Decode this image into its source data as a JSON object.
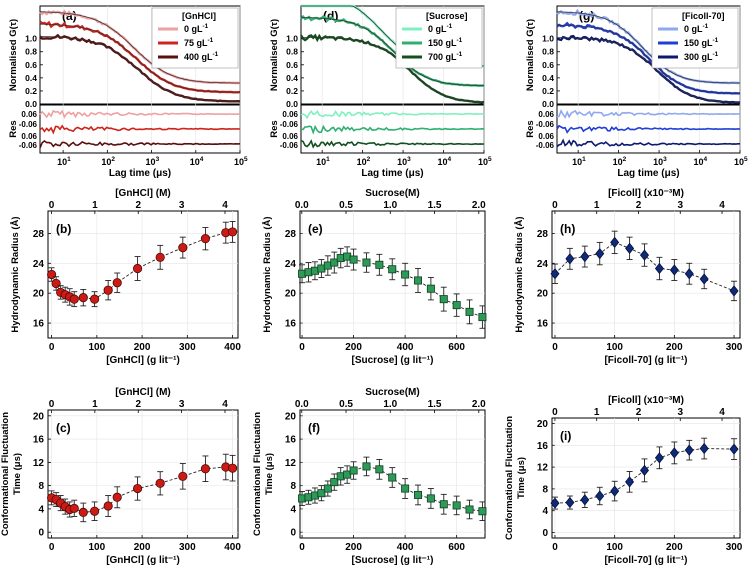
{
  "colors": {
    "gnhcl": [
      "#f0a0a0",
      "#d0231b",
      "#5a0f0f"
    ],
    "sucrose": [
      "#7ff0c0",
      "#2fb070",
      "#14501e"
    ],
    "ficoll": [
      "#8fa8f0",
      "#1f3fd8",
      "#0d1870"
    ],
    "radius_marker_red": "#cc1a14",
    "radius_marker_green": "#2e9a58",
    "radius_marker_blue": "#102a7a",
    "fit_line": "#333333",
    "error_bar": "#222222"
  },
  "chart_data": [
    {
      "id": "a",
      "type": "line",
      "panel_label": "(a)",
      "title": "",
      "ylabel": "Normalised G(τ)",
      "res_label": "Res",
      "xlabel": "Lag time (μs)",
      "xscale": "log",
      "xlim": [
        3,
        100000
      ],
      "x_ticks": [
        "10",
        "10",
        "10",
        "10",
        "10"
      ],
      "x_tick_exp": [
        "1",
        "2",
        "3",
        "4",
        "5"
      ],
      "ylim": [
        0,
        1.5
      ],
      "y_ticks": [
        "1.0",
        "0.8",
        "0.6",
        "0.4",
        "0.2",
        "0.0"
      ],
      "res_ticks": [
        "0.06",
        "-0.06",
        "0.06",
        "-0.06"
      ],
      "legend_title": "[GnHCl]",
      "series": [
        {
          "name": "0 gL",
          "sup": "-1",
          "amp": 1.1,
          "offset": 0.32,
          "tauD": 400
        },
        {
          "name": "75 gL",
          "sup": "-1",
          "amp": 1.05,
          "offset": 0.18,
          "tauD": 450
        },
        {
          "name": "400 gL",
          "sup": "-1",
          "amp": 1.0,
          "offset": 0.04,
          "tauD": 500
        }
      ]
    },
    {
      "id": "d",
      "type": "line",
      "panel_label": "(d)",
      "title": "",
      "ylabel": "Normalised G(τ)",
      "res_label": "Res",
      "xlabel": "Lag time (μs)",
      "xscale": "log",
      "xlim": [
        3,
        100000
      ],
      "x_ticks": [
        "10",
        "10",
        "10",
        "10",
        "10"
      ],
      "x_tick_exp": [
        "1",
        "2",
        "3",
        "4",
        "5"
      ],
      "ylim": [
        0,
        1.5
      ],
      "y_ticks": [
        "1.0",
        "0.8",
        "0.6",
        "0.4",
        "0.2",
        "0.0"
      ],
      "res_ticks": [
        "0.06",
        "-0.06",
        "0.06",
        "-0.06"
      ],
      "legend_title": "[Sucrose]",
      "series": [
        {
          "name": "0 gL",
          "sup": "-1",
          "amp": 1.1,
          "offset": 0.58,
          "tauD": 300
        },
        {
          "name": "150 gL",
          "sup": "-1",
          "amp": 1.05,
          "offset": 0.28,
          "tauD": 600
        },
        {
          "name": "700 gL",
          "sup": "-1",
          "amp": 1.0,
          "offset": 0.02,
          "tauD": 1500
        }
      ]
    },
    {
      "id": "g",
      "type": "line",
      "panel_label": "(g)",
      "title": "",
      "ylabel": "Normalised G(τ)",
      "res_label": "Res",
      "xlabel": "Lag time (μs)",
      "xscale": "log",
      "xlim": [
        3,
        100000
      ],
      "x_ticks": [
        "10",
        "10",
        "10",
        "10",
        "10"
      ],
      "x_tick_exp": [
        "1",
        "2",
        "3",
        "4",
        "5"
      ],
      "ylim": [
        0,
        1.5
      ],
      "y_ticks": [
        "1.0",
        "0.8",
        "0.6",
        "0.4",
        "0.2",
        "0.0"
      ],
      "res_ticks": [
        "0.06",
        "-0.06",
        "0.06",
        "-0.06"
      ],
      "legend_title": "[Ficoll-70]",
      "series": [
        {
          "name": "0 gL",
          "sup": "-1",
          "amp": 1.1,
          "offset": 0.32,
          "tauD": 400
        },
        {
          "name": "150 gL",
          "sup": "-1",
          "amp": 1.05,
          "offset": 0.16,
          "tauD": 600
        },
        {
          "name": "300 gL",
          "sup": "-1",
          "amp": 1.0,
          "offset": 0.02,
          "tauD": 900
        }
      ]
    },
    {
      "id": "b",
      "type": "scatter",
      "panel_label": "(b)",
      "title": "",
      "ylabel": "Hydrodynamic Radius (Å)",
      "xlabel": "[GnHCl]  (g lit⁻¹)",
      "top_label": "[GnHCl]  (M)",
      "top_ticks": [
        "0",
        "1",
        "2",
        "3",
        "4"
      ],
      "x_ticks": [
        "0",
        "100",
        "200",
        "300",
        "400"
      ],
      "y_ticks": [
        "28",
        "24",
        "20",
        "16"
      ],
      "xlim": [
        -8,
        412
      ],
      "ylim": [
        14,
        31
      ],
      "top_xlim": [
        -0.08,
        4.3
      ],
      "x": [
        0,
        10,
        20,
        30,
        40,
        50,
        70,
        95,
        125,
        145,
        190,
        240,
        290,
        340,
        385,
        400
      ],
      "y": [
        22.5,
        21.3,
        20.1,
        19.8,
        19.5,
        19.2,
        19.4,
        19.2,
        20.4,
        21.4,
        23.3,
        24.8,
        26.1,
        27.3,
        28.1,
        28.2
      ],
      "err": [
        0.9,
        0.9,
        0.9,
        1.0,
        1.1,
        1.0,
        1.1,
        1.0,
        1.3,
        1.3,
        1.6,
        1.6,
        1.4,
        1.5,
        1.4,
        1.4
      ],
      "marker": "circle"
    },
    {
      "id": "e",
      "type": "scatter",
      "panel_label": "(e)",
      "title": "",
      "ylabel": "Hydrodynamic Radius (Å)",
      "xlabel": "[Sucrose]  (g lit⁻¹)",
      "top_label": "Sucrose(M)",
      "top_ticks": [
        "0.0",
        "0.5",
        "1.0",
        "1.5",
        "2.0"
      ],
      "x_ticks": [
        "0",
        "200",
        "400",
        "600"
      ],
      "y_ticks": [
        "28",
        "24",
        "20",
        "16"
      ],
      "xlim": [
        -8,
        710
      ],
      "ylim": [
        14,
        31
      ],
      "top_xlim": [
        -0.02,
        2.07
      ],
      "x": [
        0,
        25,
        50,
        75,
        100,
        125,
        150,
        175,
        200,
        250,
        300,
        350,
        400,
        450,
        500,
        550,
        600,
        650,
        700
      ],
      "y": [
        22.6,
        22.8,
        23.0,
        23.3,
        23.7,
        24.1,
        24.7,
        24.9,
        24.5,
        24.1,
        23.8,
        23.2,
        22.5,
        21.7,
        20.6,
        19.2,
        18.4,
        17.5,
        16.8
      ],
      "err": [
        1.2,
        1.3,
        1.2,
        1.2,
        1.3,
        1.4,
        1.3,
        1.3,
        1.4,
        1.3,
        1.4,
        1.4,
        1.5,
        1.6,
        1.5,
        1.6,
        1.5,
        1.6,
        1.5
      ],
      "marker": "square"
    },
    {
      "id": "h",
      "type": "scatter",
      "panel_label": "(h)",
      "title": "",
      "ylabel": "Hydrodynamic Radius (Å)",
      "xlabel": "[Ficoll-70]  (g lit⁻¹)",
      "top_label": "[Ficoll]  (x10⁻³M)",
      "top_ticks": [
        "0",
        "1",
        "2",
        "3",
        "4"
      ],
      "x_ticks": [
        "0",
        "100",
        "200",
        "300"
      ],
      "y_ticks": [
        "28",
        "24",
        "20",
        "16"
      ],
      "xlim": [
        -5,
        310
      ],
      "ylim": [
        14,
        31
      ],
      "top_xlim": [
        -0.07,
        4.43
      ],
      "x": [
        0,
        25,
        50,
        75,
        100,
        125,
        150,
        175,
        200,
        225,
        250,
        300
      ],
      "y": [
        22.6,
        24.6,
        24.9,
        25.3,
        26.8,
        26.0,
        25.1,
        23.3,
        23.1,
        22.6,
        21.9,
        20.3
      ],
      "err": [
        1.3,
        1.4,
        1.4,
        1.5,
        1.5,
        1.5,
        1.5,
        1.5,
        1.4,
        1.4,
        1.3,
        1.3
      ],
      "marker": "diamond"
    },
    {
      "id": "c",
      "type": "scatter",
      "panel_label": "(c)",
      "title": "",
      "ylabel": "Conformational Fluctuation Time (μs)",
      "xlabel": "[GnHCl]  (g lit⁻¹)",
      "top_label": "[GnHCl]  (M)",
      "top_ticks": [
        "0",
        "1",
        "2",
        "3",
        "4"
      ],
      "x_ticks": [
        "0",
        "100",
        "200",
        "300",
        "400"
      ],
      "y_ticks": [
        "20",
        "16",
        "12",
        "8",
        "4",
        "0"
      ],
      "xlim": [
        -8,
        412
      ],
      "ylim": [
        -1,
        21
      ],
      "top_xlim": [
        -0.08,
        4.3
      ],
      "x": [
        0,
        10,
        20,
        30,
        40,
        50,
        70,
        95,
        125,
        145,
        190,
        240,
        290,
        340,
        385,
        400
      ],
      "y": [
        5.9,
        5.6,
        5.0,
        4.4,
        3.9,
        4.1,
        3.4,
        3.6,
        4.5,
        6.0,
        7.5,
        8.4,
        9.6,
        10.9,
        11.2,
        11.0
      ],
      "err": [
        1.2,
        1.2,
        1.3,
        1.3,
        1.3,
        1.4,
        1.6,
        1.6,
        1.8,
        1.8,
        2.0,
        2.0,
        2.2,
        2.2,
        2.2,
        2.2
      ],
      "marker": "circle"
    },
    {
      "id": "f",
      "type": "scatter",
      "panel_label": "(f)",
      "title": "",
      "ylabel": "Conformational Fluctuation Time (μs)",
      "xlabel": "[Sucrose]  (g lit⁻¹)",
      "top_label": "Sucrose(M)",
      "top_ticks": [
        "0.0",
        "0.5",
        "1.0",
        "1.5",
        "2.0"
      ],
      "x_ticks": [
        "0",
        "200",
        "400",
        "600"
      ],
      "y_ticks": [
        "20",
        "16",
        "12",
        "8",
        "4",
        "0"
      ],
      "xlim": [
        -8,
        710
      ],
      "ylim": [
        -1,
        21
      ],
      "top_xlim": [
        -0.02,
        2.07
      ],
      "x": [
        0,
        25,
        50,
        75,
        100,
        125,
        150,
        175,
        200,
        250,
        300,
        350,
        400,
        450,
        500,
        550,
        600,
        650,
        700
      ],
      "y": [
        5.8,
        6.0,
        6.3,
        6.7,
        7.5,
        8.6,
        9.6,
        9.9,
        10.6,
        11.3,
        10.8,
        9.4,
        7.5,
        6.4,
        5.8,
        4.8,
        4.6,
        3.9,
        3.6
      ],
      "err": [
        1.2,
        1.2,
        1.3,
        1.3,
        1.3,
        1.4,
        1.5,
        1.5,
        1.5,
        1.6,
        1.7,
        1.7,
        1.7,
        1.7,
        1.7,
        1.7,
        1.6,
        1.6,
        1.6
      ],
      "marker": "square"
    },
    {
      "id": "i",
      "type": "scatter",
      "panel_label": "(i)",
      "title": "",
      "ylabel": "Conformational Fluctuation Time (μs)",
      "xlabel": "[Ficoll-70]  (g lit⁻¹)",
      "top_label": "[Ficoll]  (x10⁻³M)",
      "top_ticks": [
        "0",
        "1",
        "2",
        "3",
        "4"
      ],
      "x_ticks": [
        "0",
        "100",
        "200",
        "300"
      ],
      "y_ticks": [
        "20",
        "16",
        "12",
        "8",
        "4",
        "0"
      ],
      "xlim": [
        -5,
        310
      ],
      "ylim": [
        -1,
        21
      ],
      "top_xlim": [
        -0.07,
        4.43
      ],
      "x": [
        0,
        25,
        50,
        75,
        100,
        125,
        150,
        175,
        200,
        225,
        250,
        300
      ],
      "y": [
        5.4,
        5.5,
        6.0,
        6.7,
        7.6,
        9.3,
        11.4,
        13.7,
        14.6,
        15.1,
        15.4,
        15.3
      ],
      "err": [
        1.1,
        1.2,
        1.4,
        1.6,
        1.8,
        1.9,
        2.1,
        2.0,
        2.0,
        1.8,
        1.9,
        1.9
      ],
      "marker": "diamond"
    }
  ]
}
